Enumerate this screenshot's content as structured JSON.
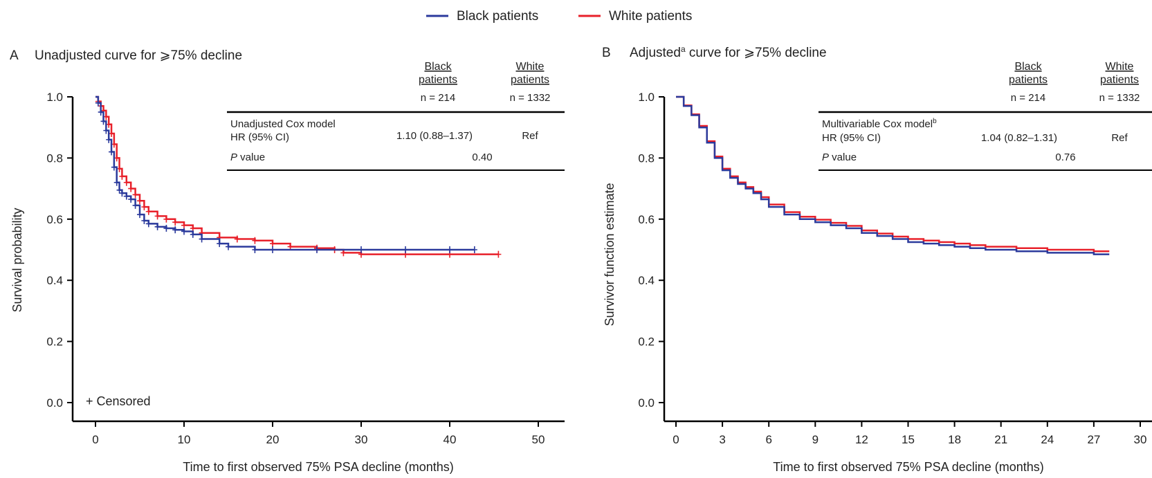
{
  "legend": {
    "items": [
      {
        "label": "Black patients",
        "color": "#2b3a9c"
      },
      {
        "label": "White patients",
        "color": "#e8202a"
      }
    ]
  },
  "colors": {
    "black": "#2b3a9c",
    "white": "#e8202a"
  },
  "chart_data": [
    {
      "type": "line",
      "panel_letter": "A",
      "title": "Unadjusted curve for ⩾75% decline",
      "xlabel": "Time to first observed 75% PSA decline (months)",
      "ylabel": "Survival probability",
      "xlim": [
        -2.5,
        52
      ],
      "ylim": [
        0,
        1
      ],
      "x_ticks": [
        0,
        10,
        20,
        30,
        40,
        50
      ],
      "y_ticks": [
        0.0,
        0.2,
        0.4,
        0.6,
        0.8,
        1.0
      ],
      "annotation": "+ Censored",
      "censor_marks": true,
      "series": [
        {
          "name": "Black patients",
          "key": "black",
          "x": [
            0,
            0.3,
            0.6,
            0.9,
            1.2,
            1.5,
            1.8,
            2.1,
            2.4,
            2.7,
            3.0,
            3.5,
            4.0,
            4.5,
            5.0,
            5.5,
            6.0,
            7.0,
            8.0,
            9.0,
            10.0,
            11.0,
            12.0,
            14.0,
            15.0,
            18.0,
            20.0,
            25.0,
            30.0,
            35.0,
            40.0,
            42.8
          ],
          "y": [
            1.0,
            0.98,
            0.95,
            0.92,
            0.89,
            0.86,
            0.82,
            0.77,
            0.72,
            0.695,
            0.685,
            0.675,
            0.665,
            0.645,
            0.615,
            0.595,
            0.585,
            0.575,
            0.57,
            0.565,
            0.56,
            0.55,
            0.535,
            0.52,
            0.51,
            0.5,
            0.5,
            0.5,
            0.5,
            0.5,
            0.5,
            0.5
          ]
        },
        {
          "name": "White patients",
          "key": "white",
          "x": [
            0,
            0.3,
            0.6,
            0.9,
            1.2,
            1.5,
            1.8,
            2.1,
            2.4,
            2.7,
            3.0,
            3.5,
            4.0,
            4.5,
            5.0,
            5.5,
            6.0,
            7.0,
            8.0,
            9.0,
            10.0,
            11.0,
            12.0,
            14.0,
            16.0,
            18.0,
            20.0,
            22.0,
            25.0,
            27.0,
            28.0,
            30.0,
            35.0,
            40.0,
            45.5
          ],
          "y": [
            1.0,
            0.985,
            0.97,
            0.955,
            0.935,
            0.91,
            0.88,
            0.845,
            0.8,
            0.765,
            0.74,
            0.72,
            0.7,
            0.68,
            0.66,
            0.64,
            0.625,
            0.61,
            0.6,
            0.59,
            0.58,
            0.57,
            0.555,
            0.54,
            0.535,
            0.53,
            0.52,
            0.51,
            0.505,
            0.5,
            0.49,
            0.485,
            0.485,
            0.485,
            0.485
          ]
        }
      ],
      "table": {
        "col1_header": [
          "Black",
          "patients"
        ],
        "col2_header": [
          "White",
          "patients"
        ],
        "n1": "n = 214",
        "n2": "n = 1332",
        "model": "Unadjusted Cox model",
        "hr_label": "HR (95% CI)",
        "hr_black": "1.10 (0.88–1.37)",
        "hr_white": "Ref",
        "p_italic": "P",
        "p_label": " value",
        "p_value": "0.40"
      }
    },
    {
      "type": "line",
      "panel_letter": "B",
      "title_pre": "Adjusted",
      "title_sup": "a",
      "title_post": " curve for ⩾75% decline",
      "xlabel": "Time to first observed 75% PSA decline (months)",
      "ylabel": "Survivor function estimate",
      "xlim": [
        -1.5,
        30
      ],
      "ylim": [
        0,
        1
      ],
      "x_ticks": [
        0,
        3,
        6,
        9,
        12,
        15,
        18,
        21,
        24,
        27,
        30
      ],
      "y_ticks": [
        0.0,
        0.2,
        0.4,
        0.6,
        0.8,
        1.0
      ],
      "censor_marks": false,
      "series": [
        {
          "name": "Black patients",
          "key": "black",
          "x": [
            0,
            0.5,
            1.0,
            1.5,
            2.0,
            2.5,
            3.0,
            3.5,
            4.0,
            4.5,
            5.0,
            5.5,
            6.0,
            7.0,
            8.0,
            9.0,
            10.0,
            11.0,
            12.0,
            13.0,
            14.0,
            15.0,
            16.0,
            17.0,
            18.0,
            19.0,
            20.0,
            22.0,
            24.0,
            26.0,
            27.0,
            28.0
          ],
          "y": [
            1.0,
            0.97,
            0.94,
            0.9,
            0.85,
            0.8,
            0.76,
            0.735,
            0.715,
            0.7,
            0.685,
            0.665,
            0.64,
            0.615,
            0.6,
            0.59,
            0.58,
            0.57,
            0.555,
            0.545,
            0.535,
            0.525,
            0.52,
            0.515,
            0.51,
            0.505,
            0.5,
            0.495,
            0.49,
            0.49,
            0.485,
            0.485
          ]
        },
        {
          "name": "White patients",
          "key": "white",
          "x": [
            0,
            0.5,
            1.0,
            1.5,
            2.0,
            2.5,
            3.0,
            3.5,
            4.0,
            4.5,
            5.0,
            5.5,
            6.0,
            7.0,
            8.0,
            9.0,
            10.0,
            11.0,
            12.0,
            13.0,
            14.0,
            15.0,
            16.0,
            17.0,
            18.0,
            19.0,
            20.0,
            22.0,
            24.0,
            26.0,
            27.0,
            28.0
          ],
          "y": [
            1.0,
            0.972,
            0.943,
            0.905,
            0.855,
            0.805,
            0.765,
            0.74,
            0.72,
            0.705,
            0.69,
            0.672,
            0.648,
            0.623,
            0.608,
            0.598,
            0.588,
            0.578,
            0.563,
            0.553,
            0.543,
            0.535,
            0.53,
            0.525,
            0.52,
            0.515,
            0.51,
            0.505,
            0.5,
            0.5,
            0.495,
            0.495
          ]
        }
      ],
      "table": {
        "col1_header": [
          "Black",
          "patients"
        ],
        "col2_header": [
          "White",
          "patients"
        ],
        "n1": "n = 214",
        "n2": "n = 1332",
        "model": "Multivariable Cox model",
        "model_sup": "b",
        "hr_label": "HR (95% CI)",
        "hr_black": "1.04 (0.82–1.31)",
        "hr_white": "Ref",
        "p_italic": "P",
        "p_label": " value",
        "p_value": "0.76"
      }
    }
  ]
}
